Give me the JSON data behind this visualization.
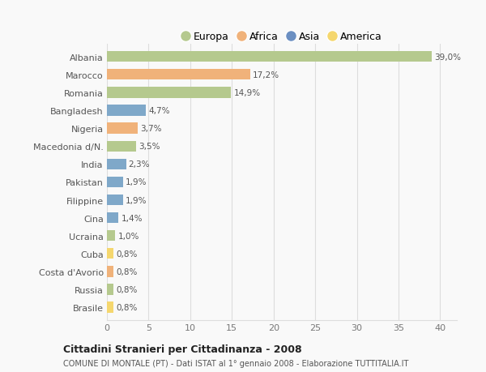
{
  "categories": [
    "Albania",
    "Marocco",
    "Romania",
    "Bangladesh",
    "Nigeria",
    "Macedonia d/N.",
    "India",
    "Pakistan",
    "Filippine",
    "Cina",
    "Ucraina",
    "Cuba",
    "Costa d'Avorio",
    "Russia",
    "Brasile"
  ],
  "values": [
    39.0,
    17.2,
    14.9,
    4.7,
    3.7,
    3.5,
    2.3,
    1.9,
    1.9,
    1.4,
    1.0,
    0.8,
    0.8,
    0.8,
    0.8
  ],
  "labels": [
    "39,0%",
    "17,2%",
    "14,9%",
    "4,7%",
    "3,7%",
    "3,5%",
    "2,3%",
    "1,9%",
    "1,9%",
    "1,4%",
    "1,0%",
    "0,8%",
    "0,8%",
    "0,8%",
    "0,8%"
  ],
  "colors": [
    "#b5c98e",
    "#f0b27a",
    "#b5c98e",
    "#7fa8c9",
    "#f0b27a",
    "#b5c98e",
    "#7fa8c9",
    "#7fa8c9",
    "#7fa8c9",
    "#7fa8c9",
    "#b5c98e",
    "#f5d76e",
    "#f0b27a",
    "#b5c98e",
    "#f5d76e"
  ],
  "legend_labels": [
    "Europa",
    "Africa",
    "Asia",
    "America"
  ],
  "legend_colors": [
    "#b5c98e",
    "#f0b27a",
    "#6b8fc2",
    "#f5d76e"
  ],
  "title": "Cittadini Stranieri per Cittadinanza - 2008",
  "subtitle": "COMUNE DI MONTALE (PT) - Dati ISTAT al 1° gennaio 2008 - Elaborazione TUTTITALIA.IT",
  "xlim": [
    0,
    42
  ],
  "xticks": [
    0,
    5,
    10,
    15,
    20,
    25,
    30,
    35,
    40
  ],
  "background_color": "#f9f9f9",
  "grid_color": "#dddddd",
  "bar_height": 0.6
}
